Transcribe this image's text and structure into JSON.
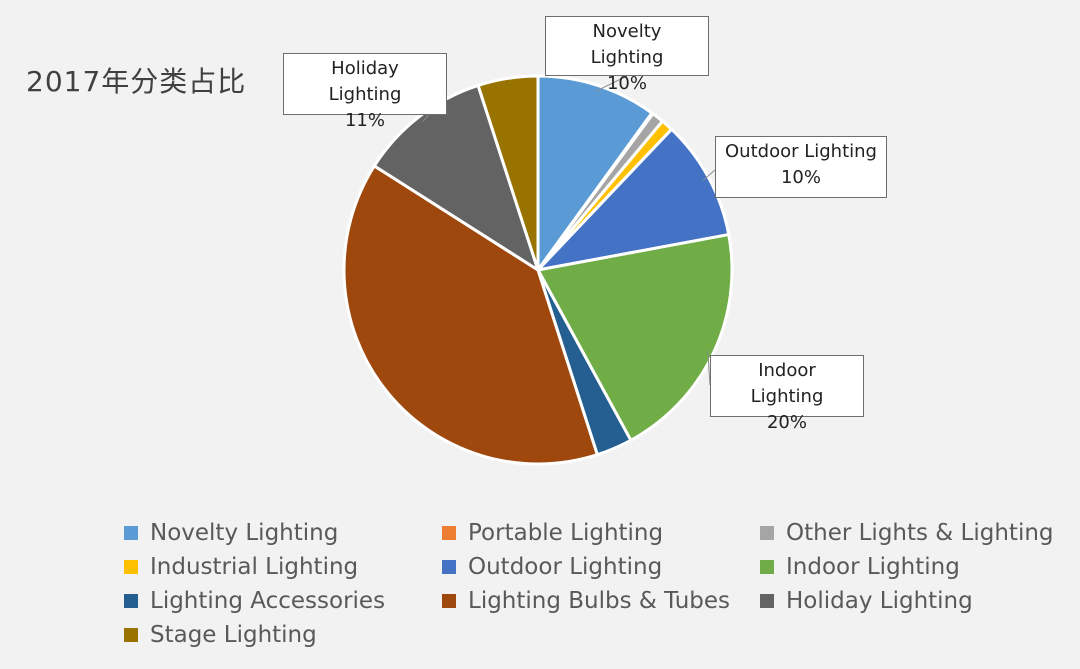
{
  "title": "2017年分类占比",
  "chart_data": {
    "type": "pie",
    "title": "2017年分类占比",
    "legend_position": "bottom",
    "slices": [
      {
        "name": "Novelty Lighting",
        "value": 10,
        "label": "10%",
        "color": "#5b9bd5"
      },
      {
        "name": "Portable Lighting",
        "value": 0.1,
        "label": "",
        "color": "#ed7d31"
      },
      {
        "name": "Other Lights & Lighting",
        "value": 1,
        "label": "",
        "color": "#a5a5a5"
      },
      {
        "name": "Industrial Lighting",
        "value": 1,
        "label": "",
        "color": "#ffc000"
      },
      {
        "name": "Outdoor Lighting",
        "value": 10,
        "label": "10%",
        "color": "#4472c4"
      },
      {
        "name": "Indoor Lighting",
        "value": 20,
        "label": "20%",
        "color": "#70ad47"
      },
      {
        "name": "Lighting Accessories",
        "value": 3,
        "label": "",
        "color": "#255e91"
      },
      {
        "name": "Lighting Bulbs & Tubes",
        "value": 39,
        "label": "",
        "color": "#9e480e"
      },
      {
        "name": "Holiday Lighting",
        "value": 11,
        "label": "11%",
        "color": "#636363"
      },
      {
        "name": "Stage Lighting",
        "value": 5,
        "label": "",
        "color": "#997300"
      }
    ]
  }
}
